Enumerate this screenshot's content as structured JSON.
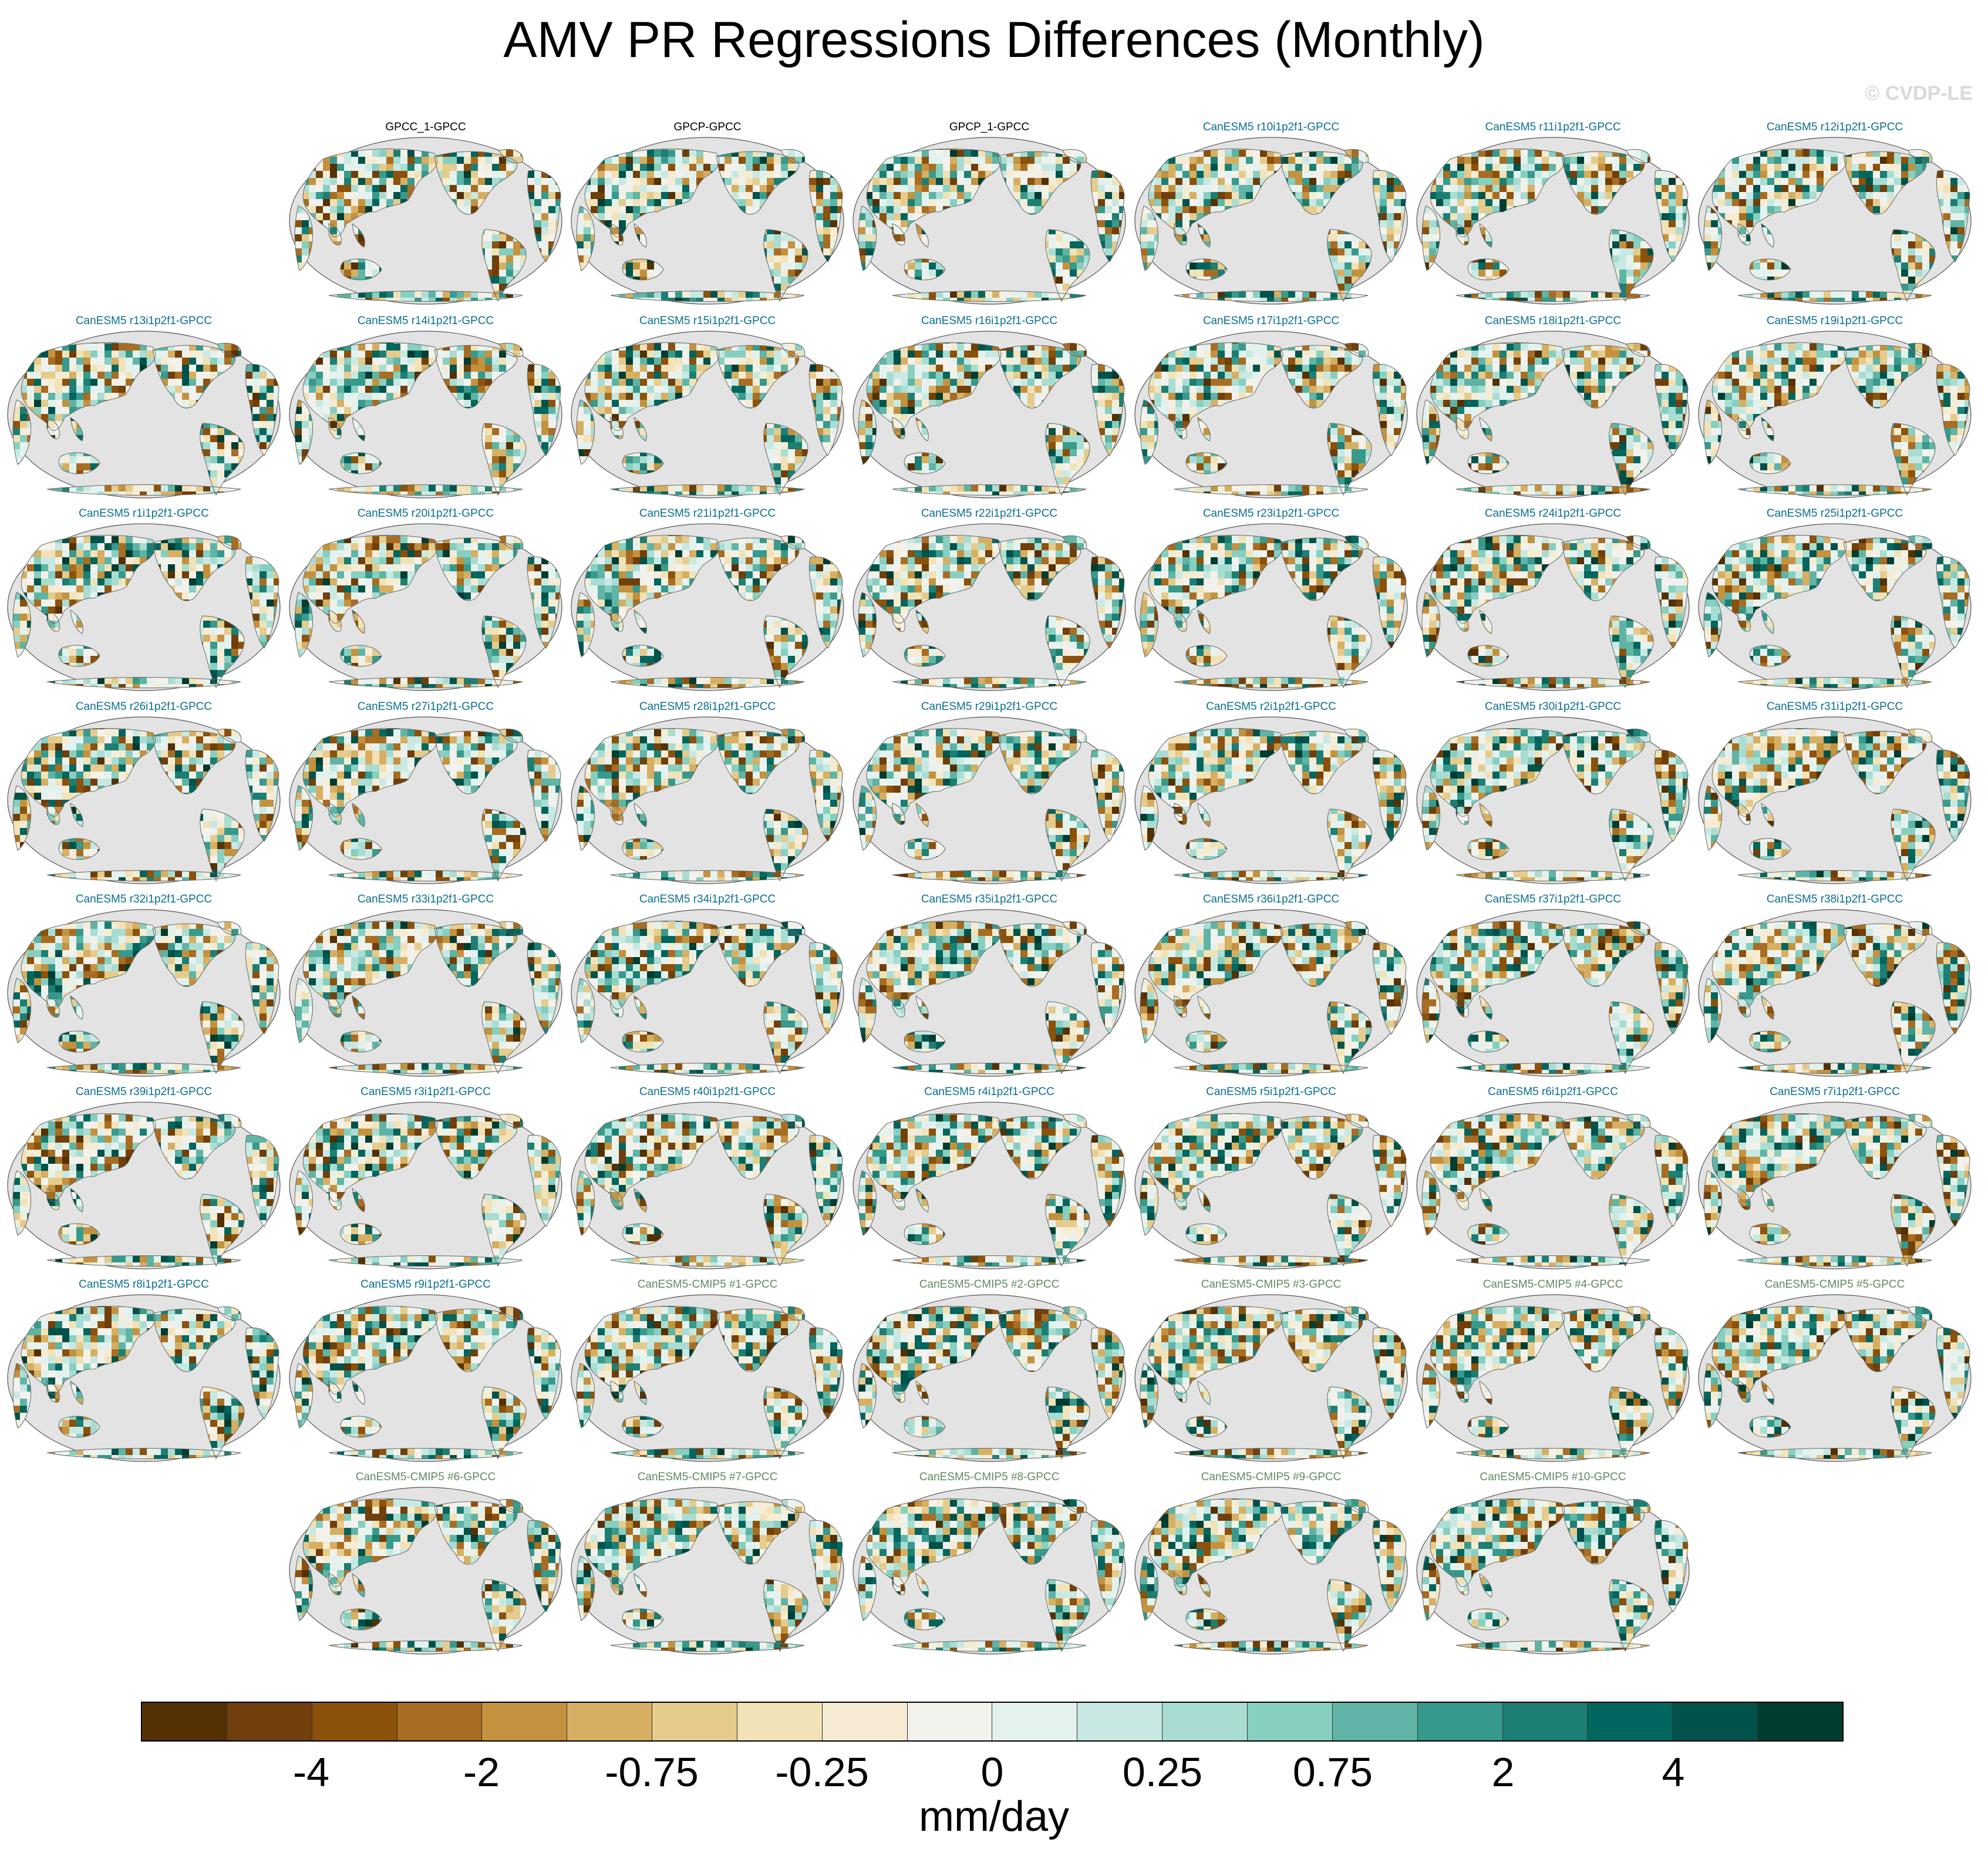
{
  "title": "AMV PR Regressions Differences (Monthly)",
  "copyright": "© CVDP-LE",
  "colors": {
    "obs_title": "#000000",
    "large_ensemble_title": "#0a6f8f",
    "cmip5_title": "#5f8a5f",
    "ocean": "#e3e3e3",
    "coast": "#666666"
  },
  "panel_rows": [
    [
      "",
      "GPCC_1-GPCC",
      "GPCP-GPCC",
      "GPCP_1-GPCC",
      "CanESM5 r10i1p2f1-GPCC",
      "CanESM5 r11i1p2f1-GPCC",
      "CanESM5 r12i1p2f1-GPCC"
    ],
    [
      "CanESM5 r13i1p2f1-GPCC",
      "CanESM5 r14i1p2f1-GPCC",
      "CanESM5 r15i1p2f1-GPCC",
      "CanESM5 r16i1p2f1-GPCC",
      "CanESM5 r17i1p2f1-GPCC",
      "CanESM5 r18i1p2f1-GPCC",
      "CanESM5 r19i1p2f1-GPCC"
    ],
    [
      "CanESM5 r1i1p2f1-GPCC",
      "CanESM5 r20i1p2f1-GPCC",
      "CanESM5 r21i1p2f1-GPCC",
      "CanESM5 r22i1p2f1-GPCC",
      "CanESM5 r23i1p2f1-GPCC",
      "CanESM5 r24i1p2f1-GPCC",
      "CanESM5 r25i1p2f1-GPCC"
    ],
    [
      "CanESM5 r26i1p2f1-GPCC",
      "CanESM5 r27i1p2f1-GPCC",
      "CanESM5 r28i1p2f1-GPCC",
      "CanESM5 r29i1p2f1-GPCC",
      "CanESM5 r2i1p2f1-GPCC",
      "CanESM5 r30i1p2f1-GPCC",
      "CanESM5 r31i1p2f1-GPCC"
    ],
    [
      "CanESM5 r32i1p2f1-GPCC",
      "CanESM5 r33i1p2f1-GPCC",
      "CanESM5 r34i1p2f1-GPCC",
      "CanESM5 r35i1p2f1-GPCC",
      "CanESM5 r36i1p2f1-GPCC",
      "CanESM5 r37i1p2f1-GPCC",
      "CanESM5 r38i1p2f1-GPCC"
    ],
    [
      "CanESM5 r39i1p2f1-GPCC",
      "CanESM5 r3i1p2f1-GPCC",
      "CanESM5 r40i1p2f1-GPCC",
      "CanESM5 r4i1p2f1-GPCC",
      "CanESM5 r5i1p2f1-GPCC",
      "CanESM5 r6i1p2f1-GPCC",
      "CanESM5 r7i1p2f1-GPCC"
    ],
    [
      "CanESM5 r8i1p2f1-GPCC",
      "CanESM5 r9i1p2f1-GPCC",
      "CanESM5-CMIP5 #1-GPCC",
      "CanESM5-CMIP5 #2-GPCC",
      "CanESM5-CMIP5 #3-GPCC",
      "CanESM5-CMIP5 #4-GPCC",
      "CanESM5-CMIP5 #5-GPCC"
    ],
    [
      "",
      "CanESM5-CMIP5 #6-GPCC",
      "CanESM5-CMIP5 #7-GPCC",
      "CanESM5-CMIP5 #8-GPCC",
      "CanESM5-CMIP5 #9-GPCC",
      "CanESM5-CMIP5 #10-GPCC",
      ""
    ]
  ],
  "colorbar": {
    "units": "mm/day",
    "swatches": [
      "#543005",
      "#703f0b",
      "#8c510a",
      "#a86d22",
      "#c4923e",
      "#d6af62",
      "#e5cb8c",
      "#f1e2b8",
      "#f6ecd4",
      "#f3f1eb",
      "#e4f2ef",
      "#c8e9e3",
      "#a9ddd3",
      "#86cfc1",
      "#5fb4a5",
      "#379a8c",
      "#1d7f73",
      "#01665e",
      "#00524a",
      "#003c30"
    ],
    "tick_labels": [
      "-4",
      "-2",
      "-0.75",
      "-0.25",
      "0",
      "0.25",
      "0.75",
      "2",
      "4"
    ],
    "tick_boundaries": [
      2,
      4,
      6,
      8,
      10,
      12,
      14,
      16,
      18
    ]
  }
}
